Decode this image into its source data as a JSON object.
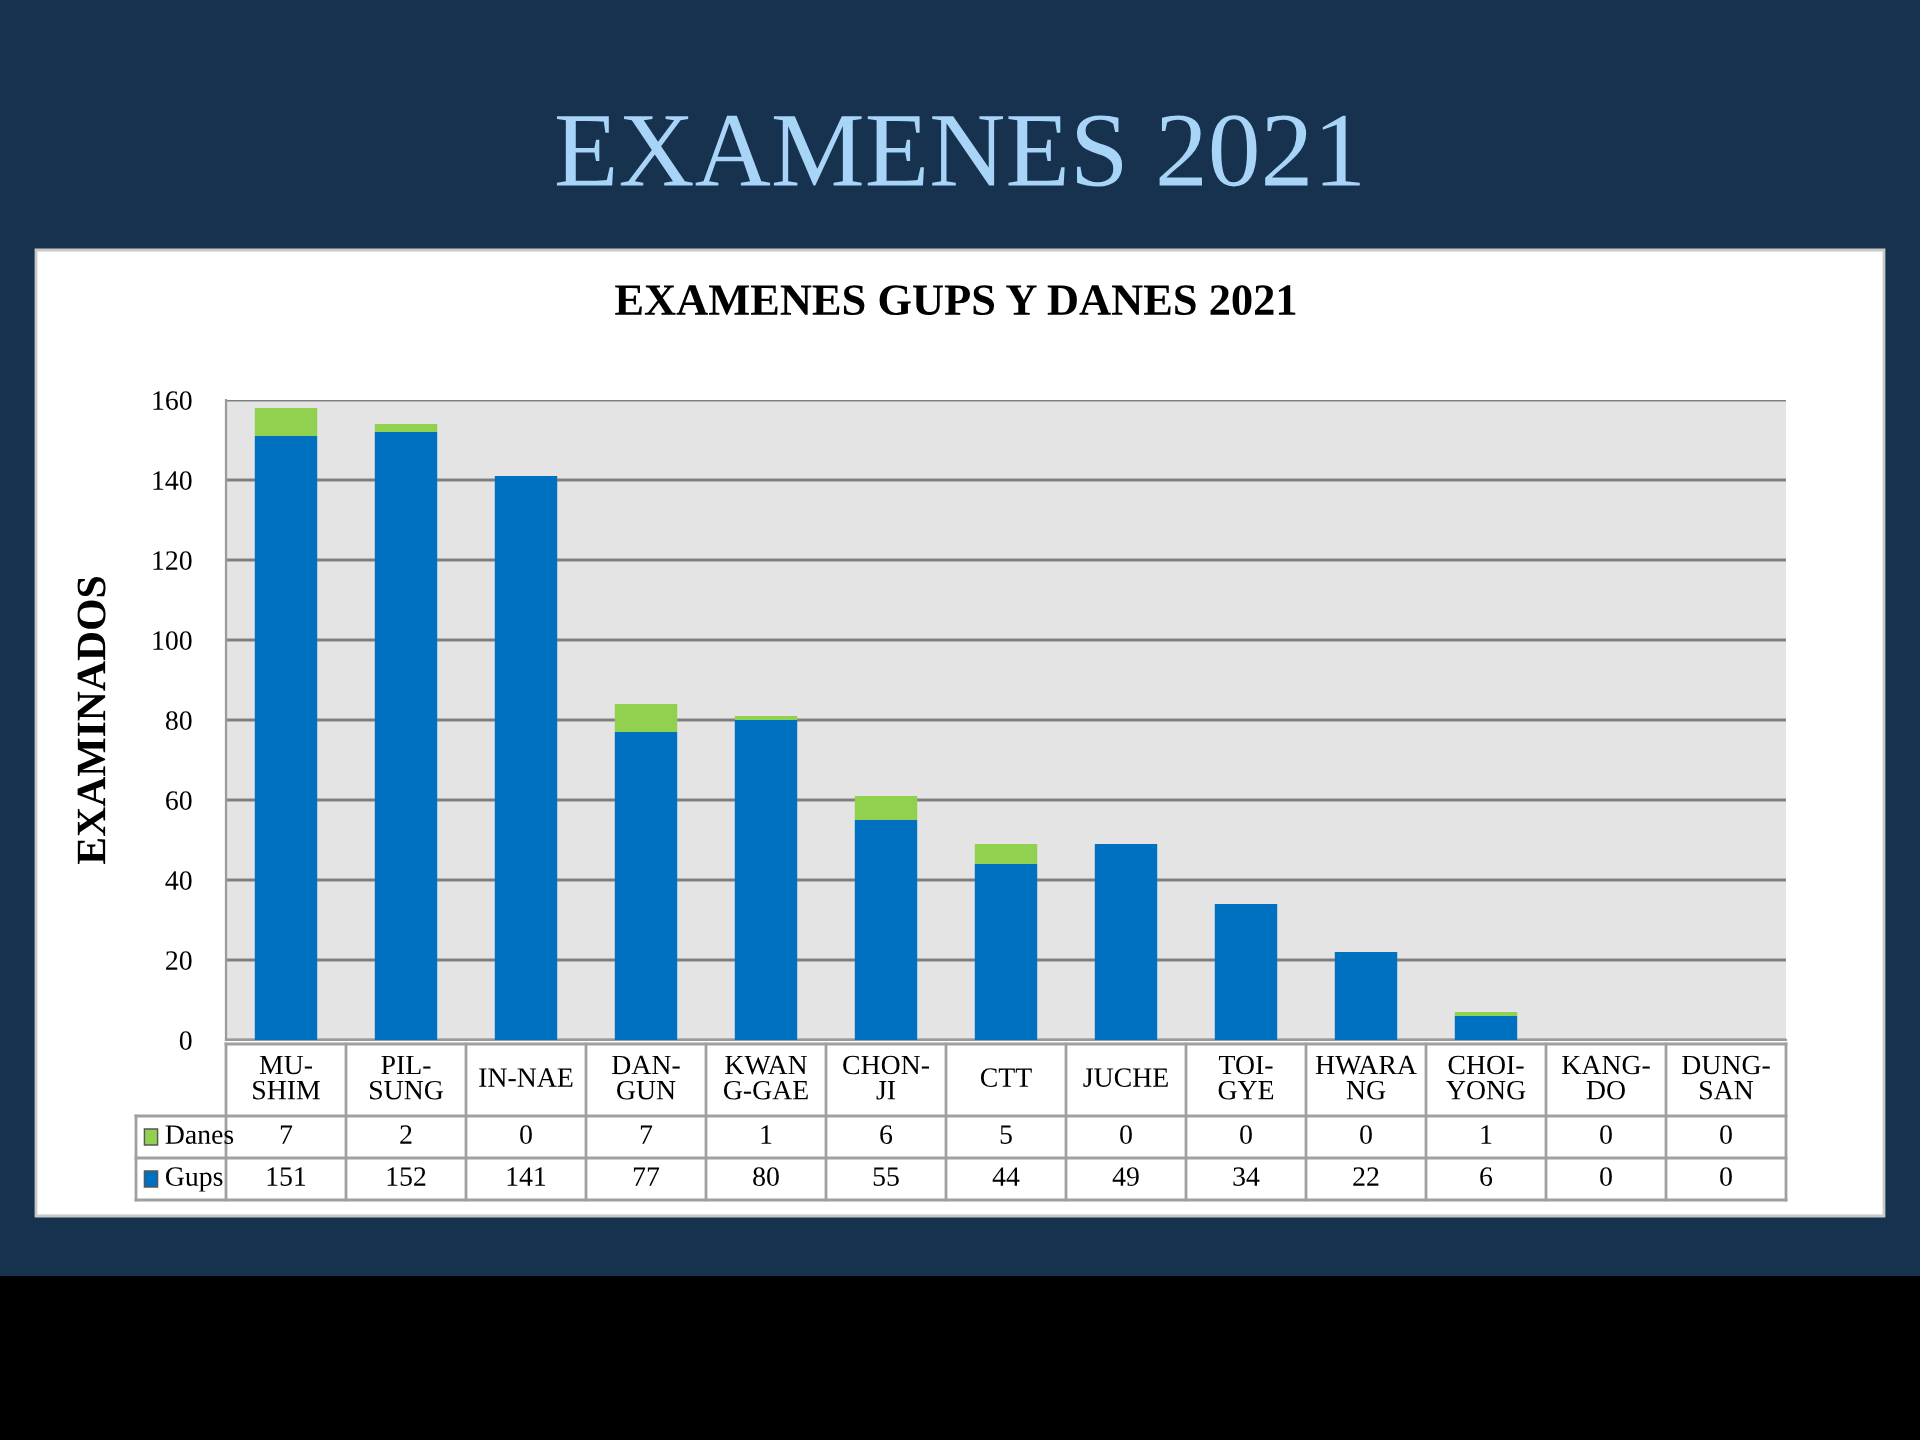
{
  "chart_data": {
    "type": "bar",
    "title": "EXAMENES 2021",
    "subtitle": "EXAMENES GUPS Y DANES 2021",
    "ylabel": "EXAMINADOS",
    "categories": [
      "MU-\nSHIM",
      "PIL-\nSUNG",
      "IN-NAE",
      "DAN-\nGUN",
      "KWAN\nG-GAE",
      "CHON-\nJI",
      "CTT",
      "JUCHE",
      "TOI-\nGYE",
      "HWARA\nNG",
      "CHOI-\nYONG",
      "KANG-\nDO",
      "DUNG-\nSAN"
    ],
    "stacked": true,
    "series": [
      {
        "name": "Gups",
        "color": "#0070c0",
        "values": [
          151,
          152,
          141,
          77,
          80,
          55,
          44,
          49,
          34,
          22,
          6,
          0,
          0
        ]
      },
      {
        "name": "Danes",
        "color": "#92d050",
        "values": [
          7,
          2,
          0,
          7,
          1,
          6,
          5,
          0,
          0,
          0,
          1,
          0,
          0
        ]
      }
    ],
    "ylim": [
      0,
      160
    ],
    "yticks": [
      0,
      20,
      40,
      60,
      80,
      100,
      120,
      140,
      160
    ],
    "grid": "y",
    "legend": "bottom left",
    "data_labels": true
  }
}
